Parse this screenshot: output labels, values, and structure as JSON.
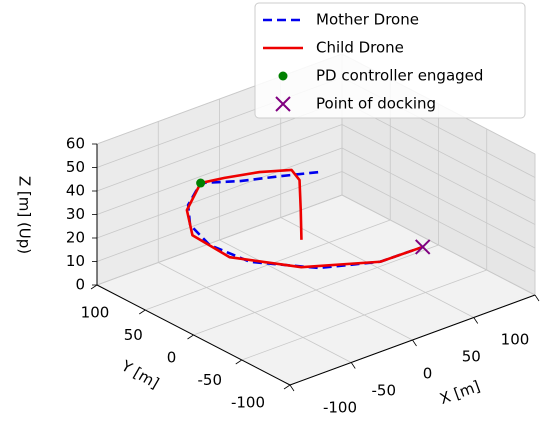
{
  "chart_data": {
    "type": "line3d",
    "xlabel": "X [m]",
    "ylabel": "Y [m]",
    "zlabel": "Z [m] (Up)",
    "xlim": [
      -100,
      100
    ],
    "ylim": [
      -100,
      100
    ],
    "zlim": [
      0,
      60
    ],
    "xticks": [
      -100,
      -50,
      0,
      50,
      100
    ],
    "yticks": [
      -100,
      -50,
      0,
      50,
      100
    ],
    "zticks": [
      0,
      10,
      20,
      30,
      40,
      50,
      60
    ],
    "grid": true,
    "legend": "upper right",
    "series": [
      {
        "name": "Mother Drone",
        "color": "#0000ee",
        "linestyle": "dashed",
        "marker": "none",
        "x": [
          23,
          -3,
          -31,
          -54,
          -65,
          -65,
          -57,
          -38,
          0,
          35,
          69
        ],
        "y": [
          27,
          33,
          39,
          51,
          50,
          48,
          38,
          20,
          -3,
          -22,
          -23
        ],
        "z": [
          40,
          42,
          44,
          45,
          38,
          30,
          22,
          15,
          10,
          10,
          10
        ]
      },
      {
        "name": "Child Drone",
        "color": "#ee0000",
        "linestyle": "solid",
        "marker": "none",
        "x": [
          -4,
          -3,
          -4,
          -5,
          -20,
          -40,
          -54,
          -66,
          -67,
          -50,
          -12,
          35,
          69
        ],
        "y": [
          10,
          12,
          12,
          19,
          33,
          44,
          51,
          50,
          43,
          26,
          0,
          -22,
          -23
        ],
        "z": [
          20,
          32,
          45,
          48,
          47,
          46,
          45,
          36,
          27,
          18,
          12,
          10,
          10
        ]
      },
      {
        "name": "PD controller engaged",
        "color": "green",
        "linestyle": "none",
        "marker": "o",
        "x": [
          -54
        ],
        "y": [
          51
        ],
        "z": [
          45
        ]
      },
      {
        "name": "Point of docking",
        "color": "purple",
        "linestyle": "none",
        "marker": "x",
        "x": [
          69
        ],
        "y": [
          -23
        ],
        "z": [
          10
        ]
      }
    ]
  }
}
